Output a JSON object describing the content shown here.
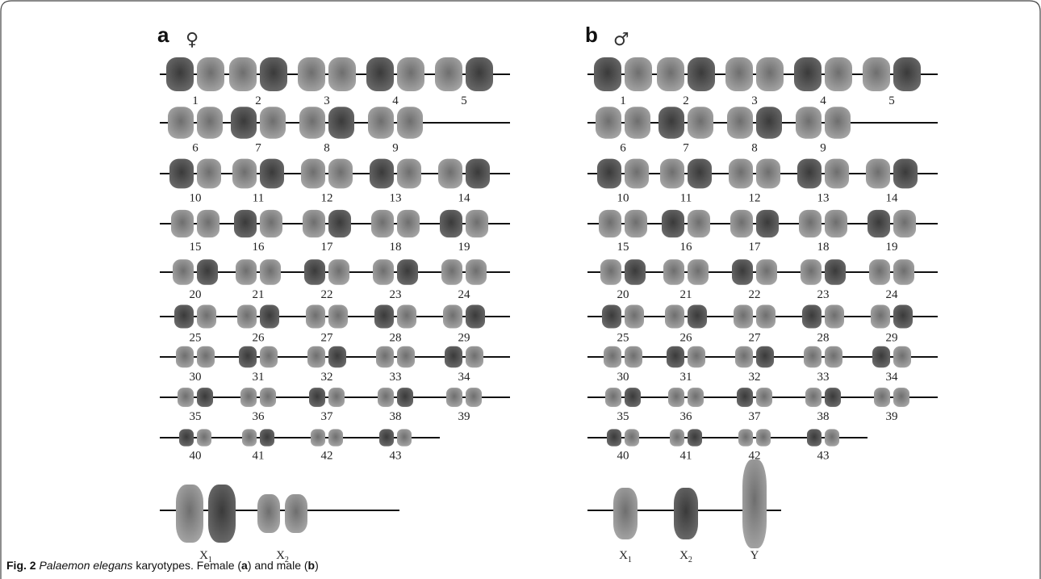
{
  "panels": [
    {
      "label": "a",
      "symbol": "♀",
      "rows": [
        [
          "1",
          "2",
          "3",
          "4",
          "5"
        ],
        [
          "6",
          "7",
          "8",
          "9"
        ],
        [
          "10",
          "11",
          "12",
          "13",
          "14"
        ],
        [
          "15",
          "16",
          "17",
          "18",
          "19"
        ],
        [
          "20",
          "21",
          "22",
          "23",
          "24"
        ],
        [
          "25",
          "26",
          "27",
          "28",
          "29"
        ],
        [
          "30",
          "31",
          "32",
          "33",
          "34"
        ],
        [
          "35",
          "36",
          "37",
          "38",
          "39"
        ],
        [
          "40",
          "41",
          "42",
          "43"
        ]
      ],
      "sex_chromosomes": [
        {
          "base": "X",
          "sub": "1"
        },
        {
          "base": "X",
          "sub": "2"
        }
      ]
    },
    {
      "label": "b",
      "symbol": "♂",
      "rows": [
        [
          "1",
          "2",
          "3",
          "4",
          "5"
        ],
        [
          "6",
          "7",
          "8",
          "9"
        ],
        [
          "10",
          "11",
          "12",
          "13",
          "14"
        ],
        [
          "15",
          "16",
          "17",
          "18",
          "19"
        ],
        [
          "20",
          "21",
          "22",
          "23",
          "24"
        ],
        [
          "25",
          "26",
          "27",
          "28",
          "29"
        ],
        [
          "30",
          "31",
          "32",
          "33",
          "34"
        ],
        [
          "35",
          "36",
          "37",
          "38",
          "39"
        ],
        [
          "40",
          "41",
          "42",
          "43"
        ]
      ],
      "sex_chromosomes": [
        {
          "base": "X",
          "sub": "1"
        },
        {
          "base": "X",
          "sub": "2"
        },
        {
          "base": "Y"
        }
      ]
    }
  ],
  "caption": {
    "figure": "Fig. 2",
    "species": "Palaemon elegans",
    "text1": " karyotypes. Female (",
    "a": "a",
    "text2": ") and male (",
    "b": "b",
    "text3": ")"
  }
}
